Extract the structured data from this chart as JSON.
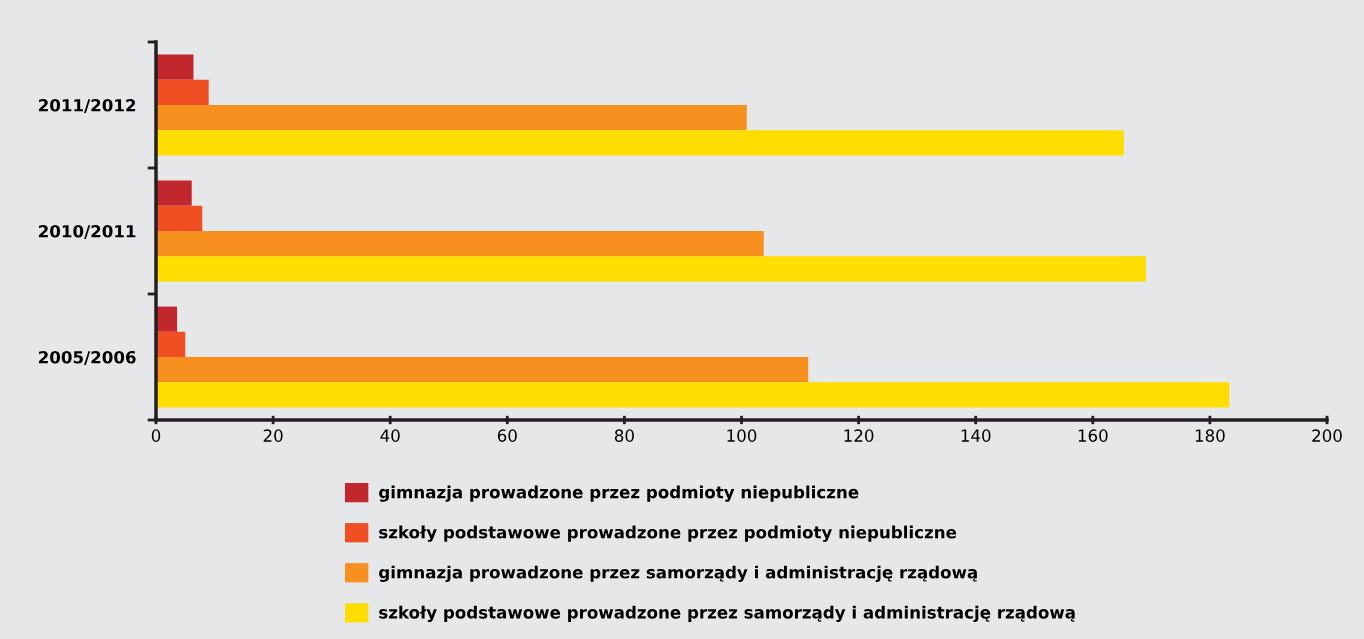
{
  "chart_data": {
    "type": "bar",
    "orientation": "horizontal",
    "categories": [
      "2011/2012",
      "2010/2011",
      "2005/2006"
    ],
    "series": [
      {
        "name": "gimnazja prowadzone przez podmioty niepubliczne",
        "color": "#c1272d",
        "values": [
          6.4,
          6.1,
          3.6
        ]
      },
      {
        "name": "szkoły podstawowe prowadzone przez podmioty niepubliczne",
        "color": "#f04e23",
        "values": [
          9.0,
          7.9,
          5.0
        ]
      },
      {
        "name": "gimnazja prowadzone przez samorządy i administrację rządową",
        "color": "#f7901e",
        "values": [
          100.9,
          103.8,
          111.4
        ]
      },
      {
        "name": "szkoły podstawowe prowadzone przez samorządy i administrację rządową",
        "color": "#ffdd00",
        "values": [
          165.3,
          169.1,
          183.3
        ]
      }
    ],
    "xlim": [
      0,
      200
    ],
    "xticks": [
      0,
      20,
      40,
      60,
      80,
      100,
      120,
      140,
      160,
      180,
      200
    ],
    "grid": false,
    "legend": "bottom"
  }
}
